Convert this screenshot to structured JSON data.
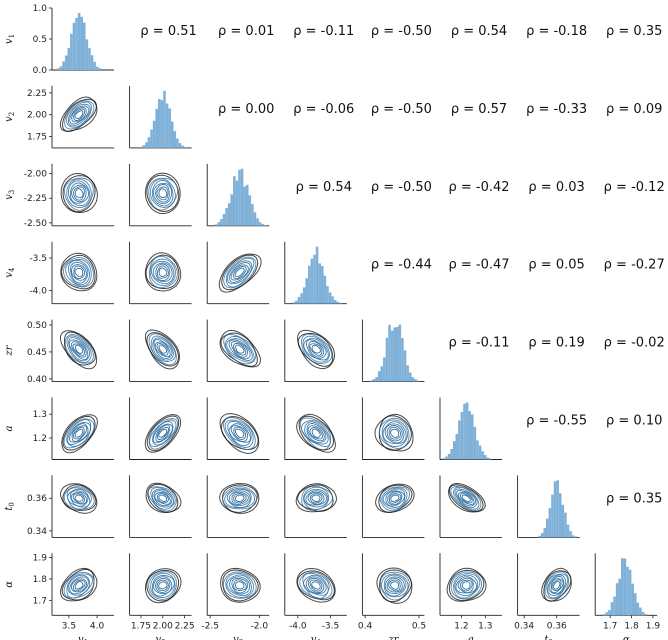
{
  "chart_data": {
    "type": "pairplot",
    "variables": [
      {
        "label": "v",
        "sub": "1",
        "range": [
          3.2,
          4.3
        ],
        "ticks": [
          3.5,
          4.0
        ],
        "tick_labels": [
          "3.5",
          "4.0"
        ],
        "center": 3.68,
        "sd": 0.14
      },
      {
        "label": "v",
        "sub": "2",
        "range": [
          1.62,
          2.33
        ],
        "ticks": [
          1.75,
          2.0,
          2.25
        ],
        "tick_labels": [
          "1.75",
          "2.00",
          "2.25"
        ],
        "center": 2.0,
        "sd": 0.09
      },
      {
        "label": "v",
        "sub": "3",
        "range": [
          -2.53,
          -1.9
        ],
        "ticks": [
          -2.5,
          -2.25,
          -2.0
        ],
        "tick_labels": [
          "-2.50",
          "-2.25",
          "-2.00"
        ],
        "x_ticks": [
          -2.5,
          -2.0
        ],
        "x_tick_labels": [
          "-2.5",
          "-2.0"
        ],
        "center": -2.2,
        "sd": 0.09
      },
      {
        "label": "v",
        "sub": "4",
        "range": [
          -4.2,
          -3.25
        ],
        "ticks": [
          -4.0,
          -3.5
        ],
        "tick_labels": [
          "-4.0",
          "-3.5"
        ],
        "center": -3.72,
        "sd": 0.13
      },
      {
        "label": "zr",
        "sub": "",
        "range": [
          0.395,
          0.51
        ],
        "ticks": [
          0.4,
          0.45,
          0.5
        ],
        "tick_labels": [
          "0.40",
          "0.45",
          "0.50"
        ],
        "x_ticks": [
          0.4,
          0.5
        ],
        "x_tick_labels": [
          "0.4",
          "0.5"
        ],
        "center": 0.455,
        "sd": 0.015
      },
      {
        "label": "a",
        "sub": "",
        "range": [
          1.11,
          1.37
        ],
        "ticks": [
          1.2,
          1.3
        ],
        "tick_labels": [
          "1.2",
          "1.3"
        ],
        "center": 1.22,
        "sd": 0.035
      },
      {
        "label": "t",
        "sub": "0",
        "range": [
          0.336,
          0.374
        ],
        "ticks": [
          0.34,
          0.36
        ],
        "tick_labels": [
          "0.34",
          "0.36"
        ],
        "center": 0.36,
        "sd": 0.004
      },
      {
        "label": "α",
        "sub": "",
        "range": [
          1.63,
          1.92
        ],
        "ticks": [
          1.7,
          1.8,
          1.9
        ],
        "tick_labels": [
          "1.7",
          "1.8",
          "1.9"
        ],
        "center": 1.77,
        "sd": 0.035
      }
    ],
    "diag_ylim": [
      0,
      1.0
    ],
    "diag_ticks": [
      "0.0",
      "0.5",
      "1.0"
    ],
    "correlations": [
      [
        null,
        0.51,
        0.01,
        -0.11,
        -0.5,
        0.54,
        -0.18,
        0.35
      ],
      [
        null,
        null,
        0.0,
        -0.06,
        -0.5,
        0.57,
        -0.33,
        0.09
      ],
      [
        null,
        null,
        null,
        0.54,
        -0.5,
        -0.42,
        0.03,
        -0.12
      ],
      [
        null,
        null,
        null,
        null,
        -0.44,
        -0.47,
        0.05,
        -0.27
      ],
      [
        null,
        null,
        null,
        null,
        null,
        -0.11,
        0.19,
        -0.02
      ],
      [
        null,
        null,
        null,
        null,
        null,
        null,
        -0.55,
        0.1
      ],
      [
        null,
        null,
        null,
        null,
        null,
        null,
        null,
        0.35
      ]
    ],
    "rho_labels": [
      [
        null,
        "ρ = 0.51",
        "ρ = 0.01",
        "ρ = -0.11",
        "ρ = -0.50",
        "ρ = 0.54",
        "ρ = -0.18",
        "ρ = 0.35"
      ],
      [
        null,
        null,
        "ρ = 0.00",
        "ρ = -0.06",
        "ρ = -0.50",
        "ρ = 0.57",
        "ρ = -0.33",
        "ρ = 0.09"
      ],
      [
        null,
        null,
        null,
        "ρ = 0.54",
        "ρ = -0.50",
        "ρ = -0.42",
        "ρ = 0.03",
        "ρ = -0.12"
      ],
      [
        null,
        null,
        null,
        null,
        "ρ = -0.44",
        "ρ = -0.47",
        "ρ = 0.05",
        "ρ = -0.27"
      ],
      [
        null,
        null,
        null,
        null,
        null,
        "ρ = -0.11",
        "ρ = 0.19",
        "ρ = -0.02"
      ],
      [
        null,
        null,
        null,
        null,
        null,
        null,
        "ρ = -0.55",
        "ρ = 0.10"
      ],
      [
        null,
        null,
        null,
        null,
        null,
        null,
        null,
        "ρ = 0.35"
      ]
    ],
    "lower_plot": "kde contour",
    "diag_plot": "histogram",
    "colors": {
      "hist": "#7fb0d8",
      "contour_dark": "#0d0d0d",
      "contour_light": "#2f6e9e"
    }
  }
}
